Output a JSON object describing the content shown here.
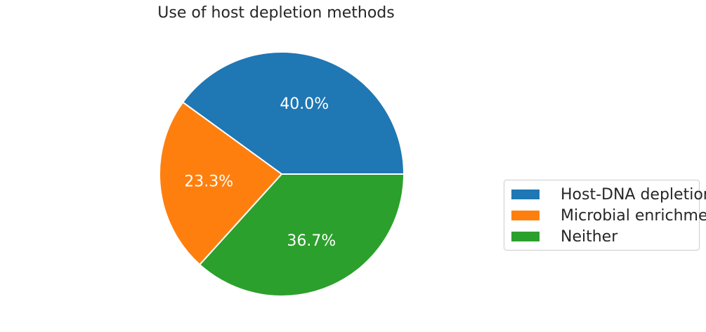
{
  "chart_data": {
    "type": "pie",
    "title": "Use of host depletion methods",
    "categories": [
      "Host-DNA depletion",
      "Microbial enrichment",
      "Neither"
    ],
    "values": [
      40.0,
      23.3,
      36.7
    ],
    "labels": [
      "40.0%",
      "23.3%",
      "36.7%"
    ],
    "colors": [
      "#1f77b4",
      "#ff7f0e",
      "#2ca02c"
    ],
    "legend_position": "right"
  }
}
